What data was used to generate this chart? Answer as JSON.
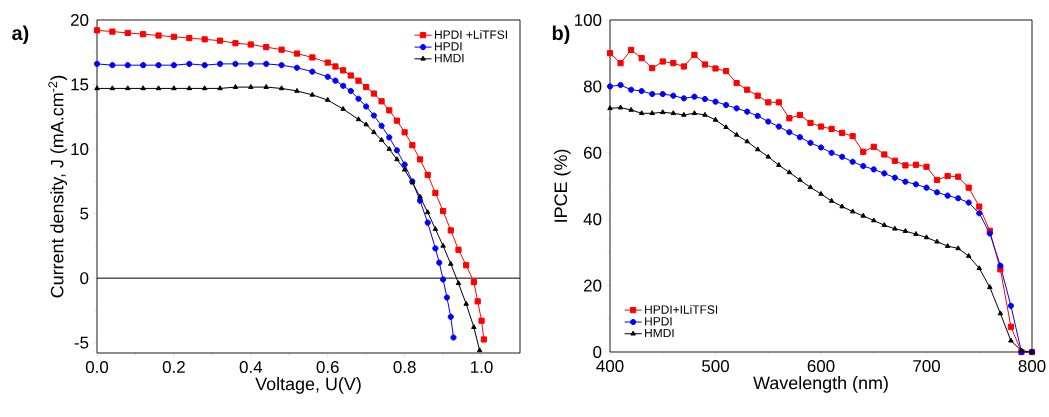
{
  "chart_data": [
    {
      "type": "line",
      "xlabel": "Voltage, U(V)",
      "ylabel": "Current density, J (mA.cm$^{-2}$)",
      "xlim": [
        0,
        1.1
      ],
      "ylim": [
        -5.8,
        20
      ],
      "xticks": [
        {
          "value": 0,
          "label": "0.0"
        },
        0.2,
        0.4,
        0.6,
        0.8,
        {
          "value": 1,
          "label": "1.0"
        }
      ],
      "yticks": [
        -5,
        0,
        5,
        10,
        15,
        20
      ],
      "legend": "top right",
      "annotations": [
        "a)"
      ],
      "ref_lines": [
        {
          "axis": "y",
          "value": 0,
          "color": "#000000"
        }
      ],
      "series": [
        {
          "name": "HPDI +LiTFSI",
          "color": "#ff0000",
          "marker": "square",
          "x": [
            0,
            0.04,
            0.08,
            0.12,
            0.16,
            0.2,
            0.24,
            0.28,
            0.32,
            0.36,
            0.4,
            0.44,
            0.48,
            0.52,
            0.56,
            0.6,
            0.62,
            0.64,
            0.66,
            0.68,
            0.7,
            0.72,
            0.74,
            0.76,
            0.78,
            0.8,
            0.82,
            0.84,
            0.86,
            0.88,
            0.9,
            0.92,
            0.94,
            0.96,
            0.98,
            0.99,
            1.0,
            1.006
          ],
          "values": [
            19.2,
            19.1,
            19.0,
            18.9,
            18.8,
            18.7,
            18.6,
            18.5,
            18.4,
            18.2,
            18.1,
            17.9,
            17.7,
            17.4,
            17.1,
            16.7,
            16.4,
            16.1,
            15.7,
            15.3,
            14.8,
            14.3,
            13.7,
            13.0,
            12.2,
            11.3,
            10.3,
            9.2,
            8.0,
            6.6,
            5.2,
            3.7,
            2.2,
            1.0,
            -0.3,
            -1.8,
            -3.3,
            -4.75
          ]
        },
        {
          "name": "HPDI",
          "color": "#0000ff",
          "marker": "circle",
          "x": [
            0,
            0.04,
            0.08,
            0.12,
            0.16,
            0.2,
            0.24,
            0.28,
            0.32,
            0.36,
            0.4,
            0.44,
            0.48,
            0.52,
            0.56,
            0.6,
            0.62,
            0.64,
            0.66,
            0.68,
            0.7,
            0.72,
            0.74,
            0.76,
            0.78,
            0.8,
            0.82,
            0.84,
            0.86,
            0.88,
            0.89,
            0.9,
            0.91,
            0.92,
            0.927
          ],
          "values": [
            16.6,
            16.5,
            16.5,
            16.5,
            16.5,
            16.5,
            16.6,
            16.5,
            16.6,
            16.6,
            16.6,
            16.6,
            16.5,
            16.3,
            16.0,
            15.6,
            15.3,
            14.9,
            14.5,
            13.9,
            13.3,
            12.6,
            11.8,
            10.9,
            9.9,
            8.8,
            7.5,
            6.0,
            4.3,
            2.3,
            1.2,
            -0.1,
            -1.5,
            -3.0,
            -4.6
          ]
        },
        {
          "name": "HMDI",
          "color": "#000000",
          "marker": "triangle",
          "x": [
            0,
            0.04,
            0.08,
            0.12,
            0.16,
            0.2,
            0.24,
            0.28,
            0.32,
            0.36,
            0.4,
            0.44,
            0.48,
            0.52,
            0.56,
            0.6,
            0.64,
            0.68,
            0.7,
            0.72,
            0.74,
            0.76,
            0.78,
            0.8,
            0.82,
            0.84,
            0.86,
            0.88,
            0.9,
            0.92,
            0.94,
            0.96,
            0.98,
            0.995
          ],
          "values": [
            14.7,
            14.7,
            14.7,
            14.7,
            14.7,
            14.7,
            14.7,
            14.7,
            14.7,
            14.8,
            14.8,
            14.8,
            14.7,
            14.5,
            14.2,
            13.8,
            13.1,
            12.3,
            11.9,
            11.3,
            10.7,
            10.0,
            9.2,
            8.4,
            7.4,
            6.3,
            5.1,
            3.8,
            2.5,
            1.1,
            -0.4,
            -2.0,
            -3.8,
            -5.6
          ]
        }
      ]
    },
    {
      "type": "line",
      "xlabel": "Wavelength (nm)",
      "ylabel": "IPCE (%)",
      "xlim": [
        400,
        800
      ],
      "ylim": [
        0,
        100
      ],
      "xticks": [
        400,
        500,
        600,
        700,
        800
      ],
      "yticks": [
        0,
        20,
        40,
        60,
        80,
        100
      ],
      "legend": "bottom left",
      "annotations": [
        "b)"
      ],
      "x": [
        400,
        410,
        420,
        430,
        440,
        450,
        460,
        470,
        480,
        490,
        500,
        510,
        520,
        530,
        540,
        550,
        560,
        570,
        580,
        590,
        600,
        610,
        620,
        630,
        640,
        650,
        660,
        670,
        680,
        690,
        700,
        710,
        720,
        730,
        740,
        750,
        760,
        770,
        780,
        790,
        800
      ],
      "series": [
        {
          "name": "HPDI+ILiTFSI",
          "color": "#ff0000",
          "marker": "square",
          "values": [
            90,
            87,
            91,
            88.5,
            85.5,
            87.5,
            87,
            86,
            89.5,
            86.6,
            85.4,
            84.6,
            81,
            79,
            77.2,
            75.2,
            75.2,
            70.4,
            71.4,
            69,
            67.9,
            67.2,
            66,
            65,
            60.3,
            61.8,
            59.5,
            57.6,
            56.2,
            56.4,
            55.8,
            51.8,
            53,
            52.8,
            49.5,
            43.8,
            36.5,
            24.9,
            7.6,
            0,
            0
          ]
        },
        {
          "name": "HPDI",
          "color": "#0000ff",
          "marker": "circle",
          "values": [
            80,
            80.4,
            79,
            78.6,
            77.7,
            77.7,
            77.2,
            76.4,
            76.9,
            76.2,
            75.4,
            74.4,
            73.4,
            72.4,
            71.1,
            69.4,
            67.9,
            66.2,
            64.7,
            63,
            61.6,
            60,
            58.8,
            57.3,
            56,
            55,
            53.8,
            52.5,
            51.3,
            50.5,
            49.5,
            48.1,
            47.1,
            46.3,
            45,
            41.8,
            35.7,
            26,
            13.9,
            0,
            0
          ]
        },
        {
          "name": "HMDI",
          "color": "#000000",
          "marker": "triangle",
          "values": [
            73.4,
            73.6,
            72.9,
            71.9,
            71.9,
            72.2,
            71.9,
            71.4,
            71.9,
            71.4,
            69.9,
            67.7,
            65.4,
            63.4,
            61,
            58.8,
            56.3,
            54.1,
            51.8,
            49.6,
            47.6,
            45.5,
            43.8,
            42.3,
            41,
            39.6,
            38.2,
            37.1,
            36.4,
            35.5,
            34.5,
            33.2,
            31.9,
            31.2,
            28.9,
            25.2,
            19.5,
            11.6,
            3.4,
            0.4,
            0
          ]
        }
      ]
    }
  ]
}
